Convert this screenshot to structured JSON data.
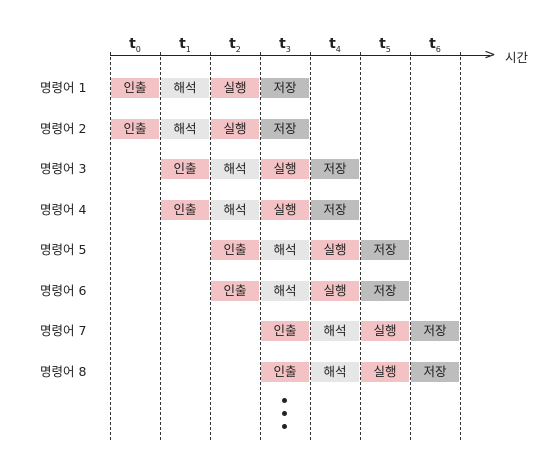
{
  "time_labels": [
    {
      "base": "t",
      "sub": "0"
    },
    {
      "base": "t",
      "sub": "1"
    },
    {
      "base": "t",
      "sub": "2"
    },
    {
      "base": "t",
      "sub": "3"
    },
    {
      "base": "t",
      "sub": "4"
    },
    {
      "base": "t",
      "sub": "5"
    },
    {
      "base": "t",
      "sub": "6"
    }
  ],
  "axis_label": "시간",
  "stage_names": [
    "인출",
    "해석",
    "실행",
    "저장"
  ],
  "instructions": [
    {
      "label": "명령어 1",
      "start": 0
    },
    {
      "label": "명령어 2",
      "start": 0
    },
    {
      "label": "명령어 3",
      "start": 1
    },
    {
      "label": "명령어 4",
      "start": 1
    },
    {
      "label": "명령어 5",
      "start": 2
    },
    {
      "label": "명령어 6",
      "start": 2
    },
    {
      "label": "명령어 7",
      "start": 3
    },
    {
      "label": "명령어 8",
      "start": 3
    }
  ],
  "colors": {
    "fetch": "#f3c2c4",
    "decode": "#e6e6e6",
    "execute": "#f3c2c4",
    "store": "#bdbdbd"
  }
}
